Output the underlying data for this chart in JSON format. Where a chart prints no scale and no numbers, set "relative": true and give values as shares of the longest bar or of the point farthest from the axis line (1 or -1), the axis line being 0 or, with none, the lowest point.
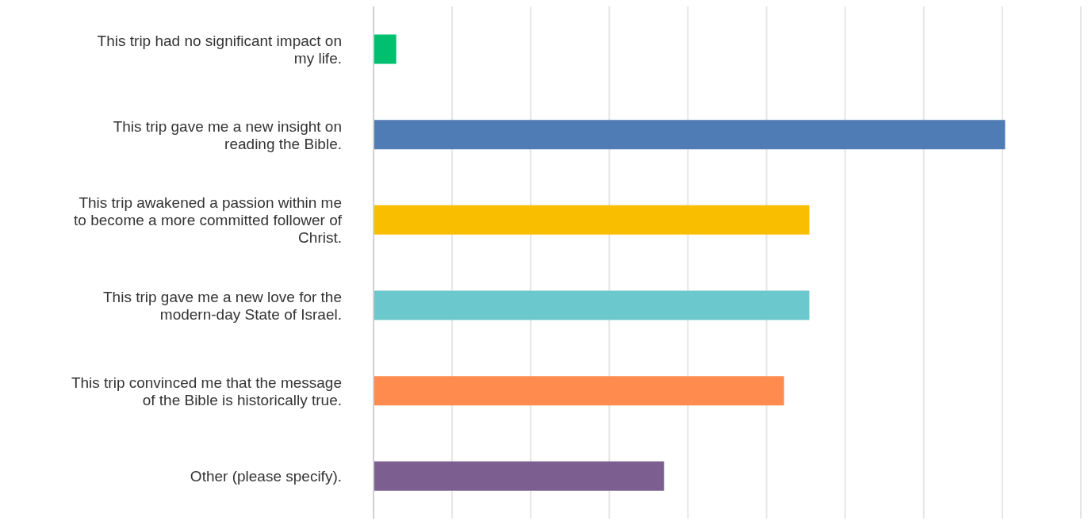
{
  "chart_data": {
    "type": "bar",
    "orientation": "horizontal",
    "relative": true,
    "grid": "x",
    "categories": [
      "This trip had no significant impact on my life.",
      "This trip gave me a new insight on reading the Bible.",
      "This trip awakened a passion within me to become a more committed follower of Christ.",
      "This trip gave me a new love for the modern-day State of Israel.",
      "This trip convinced me that the message of the Bible is historically true.",
      "Other (please specify)."
    ],
    "values": [
      0.036,
      1,
      0.69,
      0.69,
      0.65,
      0.46
    ],
    "colors": [
      "#00bf6f",
      "#507cb6",
      "#f9be00",
      "#6bc8cd",
      "#ff8b4f",
      "#7d5e90"
    ]
  }
}
